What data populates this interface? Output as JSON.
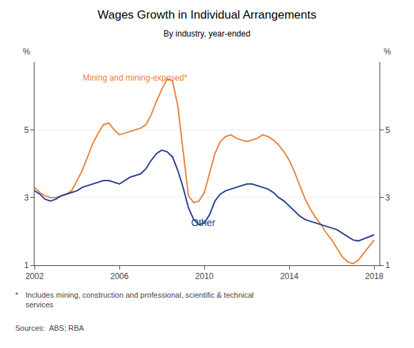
{
  "chart_data": {
    "type": "line",
    "title": "Wages Growth in Individual Arrangements",
    "subtitle": "By industry, year-ended",
    "ylabel": "%",
    "y2label": "%",
    "footnote_marker": "*",
    "footnote": "Includes mining, construction and professional, scientific & technical\nservices",
    "source": "Sources:  ABS; RBA",
    "xlim": [
      2002.0,
      2018.25
    ],
    "xticks": [
      2002,
      2006,
      2010,
      2014,
      2018
    ],
    "ylim": [
      1,
      7
    ],
    "yticks": [
      1,
      3,
      5
    ],
    "y2lim": [
      1,
      7
    ],
    "y2ticks": [
      1,
      3,
      5
    ],
    "grid": true,
    "x": [
      2002.0,
      2002.25,
      2002.5,
      2002.75,
      2003.0,
      2003.25,
      2003.5,
      2003.75,
      2004.0,
      2004.25,
      2004.5,
      2004.75,
      2005.0,
      2005.25,
      2005.5,
      2005.75,
      2006.0,
      2006.25,
      2006.5,
      2006.75,
      2007.0,
      2007.25,
      2007.5,
      2007.75,
      2008.0,
      2008.25,
      2008.5,
      2008.75,
      2009.0,
      2009.25,
      2009.5,
      2009.75,
      2010.0,
      2010.25,
      2010.5,
      2010.75,
      2011.0,
      2011.25,
      2011.5,
      2011.75,
      2012.0,
      2012.25,
      2012.5,
      2012.75,
      2013.0,
      2013.25,
      2013.5,
      2013.75,
      2014.0,
      2014.25,
      2014.5,
      2014.75,
      2015.0,
      2015.25,
      2015.5,
      2015.75,
      2016.0,
      2016.25,
      2016.5,
      2016.75,
      2017.0,
      2017.25,
      2017.5,
      2017.75,
      2018.0
    ],
    "series": [
      {
        "name": "Mining and mining-exposed*",
        "color": "#E8833A",
        "values": [
          3.3,
          3.15,
          3.05,
          3.0,
          3.0,
          3.05,
          3.1,
          3.2,
          3.5,
          3.8,
          4.2,
          4.6,
          4.9,
          5.15,
          5.2,
          5.0,
          4.85,
          4.9,
          4.95,
          5.0,
          5.05,
          5.15,
          5.45,
          5.85,
          6.2,
          6.5,
          6.45,
          5.7,
          4.4,
          3.05,
          2.85,
          2.9,
          3.15,
          3.7,
          4.3,
          4.65,
          4.8,
          4.85,
          4.75,
          4.7,
          4.65,
          4.7,
          4.75,
          4.85,
          4.8,
          4.7,
          4.55,
          4.35,
          4.1,
          3.75,
          3.35,
          2.95,
          2.65,
          2.4,
          2.2,
          1.95,
          1.75,
          1.5,
          1.25,
          1.1,
          1.05,
          1.15,
          1.35,
          1.55,
          1.75
        ]
      },
      {
        "name": "Other",
        "color": "#253F8C",
        "values": [
          3.2,
          3.1,
          2.95,
          2.9,
          2.95,
          3.05,
          3.1,
          3.15,
          3.2,
          3.3,
          3.35,
          3.4,
          3.45,
          3.5,
          3.5,
          3.45,
          3.4,
          3.5,
          3.6,
          3.65,
          3.7,
          3.85,
          4.1,
          4.3,
          4.4,
          4.35,
          4.2,
          3.8,
          3.3,
          2.7,
          2.35,
          2.2,
          2.25,
          2.5,
          2.9,
          3.1,
          3.2,
          3.25,
          3.3,
          3.35,
          3.4,
          3.4,
          3.35,
          3.3,
          3.25,
          3.15,
          3.0,
          2.9,
          2.75,
          2.6,
          2.45,
          2.35,
          2.3,
          2.25,
          2.2,
          2.15,
          2.1,
          2.05,
          1.95,
          1.85,
          1.75,
          1.72,
          1.78,
          1.85,
          1.9
        ]
      }
    ]
  }
}
